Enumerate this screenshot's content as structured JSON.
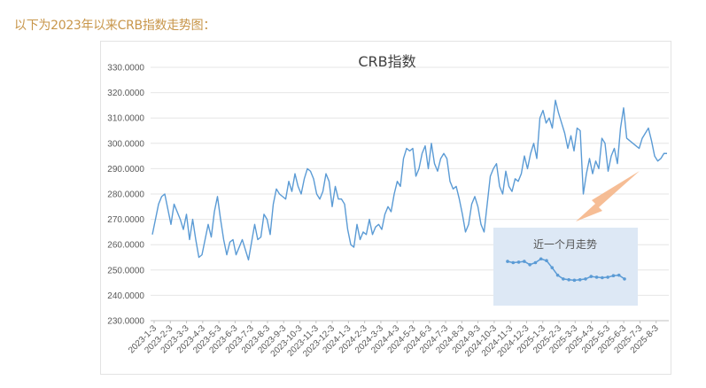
{
  "intro_text": "以下为2023年以来CRB指数走势图：",
  "colors": {
    "line": "#5b9bd5",
    "inset_bg": "#dde8f5",
    "arrow": "#f4b183",
    "intro": "#c8964a"
  },
  "chart_data": {
    "type": "line",
    "title": "CRB指数",
    "ylim": [
      230,
      330
    ],
    "y_ticks": [
      "230.0000",
      "240.0000",
      "250.0000",
      "260.0000",
      "270.0000",
      "280.0000",
      "290.0000",
      "300.0000",
      "310.0000",
      "320.0000",
      "330.0000"
    ],
    "x_ticks": [
      "2023-1-3",
      "2023-2-3",
      "2023-3-3",
      "2023-4-3",
      "2023-5-3",
      "2023-6-3",
      "2023-7-3",
      "2023-8-3",
      "2023-9-3",
      "2023-10-3",
      "2023-11-3",
      "2023-12-3",
      "2024-1-3",
      "2024-2-3",
      "2024-3-3",
      "2024-4-3",
      "2024-5-3",
      "2024-6-3",
      "2024-7-3",
      "2024-8-3",
      "2024-9-3",
      "2024-10-3",
      "2024-11-3",
      "2024-12-3",
      "2025-1-3",
      "2025-2-3",
      "2025-3-3",
      "2025-4-3",
      "2025-5-3",
      "2025-6-3",
      "2025-7-3",
      "2025-8-3"
    ],
    "grid": "horizontal",
    "series": [
      {
        "values": [
          264,
          270,
          276,
          279,
          280,
          274,
          268,
          276,
          273,
          270,
          266,
          272,
          262,
          270,
          262,
          255,
          256,
          262,
          268,
          263,
          273,
          279,
          270,
          262,
          256,
          261,
          262,
          256,
          259,
          262,
          258,
          254,
          261,
          268,
          262,
          263,
          272,
          270,
          264,
          276,
          282,
          280,
          279,
          278,
          285,
          281,
          288,
          283,
          280,
          286,
          290,
          289,
          286,
          280,
          278,
          281,
          288,
          285,
          275,
          283,
          278,
          278,
          276,
          266,
          260,
          259,
          268,
          262,
          265,
          264,
          270,
          264,
          267,
          268,
          266,
          272,
          275,
          273,
          280,
          285,
          283,
          294,
          298,
          297,
          298,
          287,
          290,
          296,
          299,
          290,
          300,
          292,
          289,
          294,
          296,
          294,
          285,
          282,
          283,
          278,
          272,
          265,
          268,
          276,
          279,
          275,
          268,
          265,
          276,
          287,
          290,
          292,
          283,
          280,
          289,
          283,
          281,
          286,
          285,
          288,
          295,
          290,
          296,
          300,
          294,
          310,
          313,
          308,
          310,
          306,
          317,
          312,
          308,
          304,
          298,
          303,
          297,
          306,
          305,
          280,
          288,
          294,
          288,
          293,
          290,
          302,
          300,
          289,
          295,
          298,
          292,
          306,
          314,
          302,
          301,
          300,
          299,
          298,
          302,
          304,
          306,
          301,
          295,
          293,
          294,
          296,
          296
        ]
      }
    ],
    "inset": {
      "title": "近一个月走势",
      "values": [
        253.5,
        253,
        253.2,
        253.5,
        252.2,
        253,
        254.5,
        253.8,
        251,
        248,
        246.5,
        246.2,
        246,
        246.2,
        246.5,
        247.5,
        247.2,
        247,
        247.2,
        247.8,
        248,
        246.5
      ]
    }
  }
}
